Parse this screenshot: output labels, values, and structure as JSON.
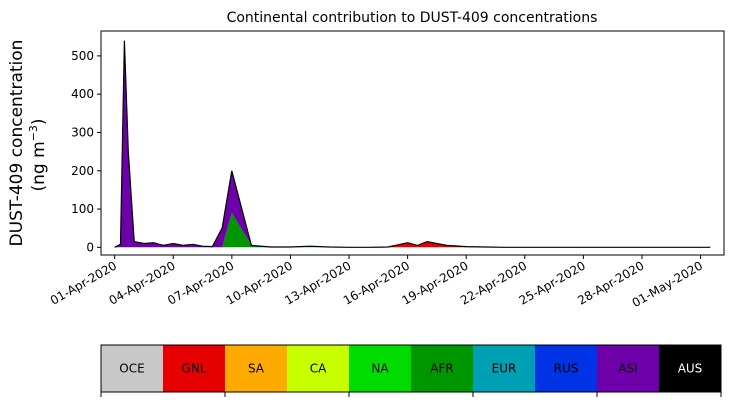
{
  "chart_data": {
    "type": "area",
    "title": "Continental contribution to DUST-409 concentrations",
    "ylabel_line1": "DUST-409 concentration",
    "ylabel_line2": "(ng m",
    "ylabel_unit_exp": "−3",
    "ylabel_close": ")",
    "xlabel": "",
    "x_tick_labels": [
      "01-Apr-2020",
      "04-Apr-2020",
      "07-Apr-2020",
      "10-Apr-2020",
      "13-Apr-2020",
      "16-Apr-2020",
      "19-Apr-2020",
      "22-Apr-2020",
      "25-Apr-2020",
      "28-Apr-2020",
      "01-May-2020"
    ],
    "x_tick_days": [
      0,
      3,
      6,
      9,
      12,
      15,
      18,
      21,
      24,
      27,
      30
    ],
    "xlim_days": [
      -0.7,
      31.2
    ],
    "ylim": [
      -20,
      565
    ],
    "y_ticks": [
      0,
      100,
      200,
      300,
      400,
      500
    ],
    "x_days": [
      0,
      0.3,
      0.5,
      0.7,
      1.0,
      1.5,
      2.0,
      2.5,
      3.0,
      3.5,
      4.0,
      4.5,
      5.0,
      5.5,
      6.0,
      7.0,
      8.0,
      9.0,
      10.0,
      11.0,
      12.0,
      13.0,
      14.0,
      15.0,
      15.5,
      16.0,
      17.0,
      18.0,
      19.0,
      20.0,
      21.0,
      22.0,
      23.0,
      24.0,
      25.0,
      26.0,
      27.0,
      28.0,
      29.0,
      30.0,
      30.5
    ],
    "series": [
      {
        "name": "OCE",
        "color": "#c8c8c8",
        "values": [
          0,
          0,
          0,
          0,
          0,
          0,
          0,
          0,
          0,
          0,
          0,
          0,
          0,
          0,
          0,
          0,
          0,
          0,
          0,
          0,
          0,
          0,
          0,
          0,
          0,
          0,
          0,
          0,
          0,
          0,
          0,
          0,
          0,
          0,
          0,
          0,
          0,
          0,
          0,
          0,
          0
        ]
      },
      {
        "name": "GNL",
        "color": "#e60000",
        "values": [
          0,
          0,
          0,
          0,
          0,
          0,
          0,
          0,
          0,
          0,
          0,
          0,
          0,
          0,
          0,
          0,
          0,
          0,
          0,
          0,
          0,
          0,
          1,
          12,
          5,
          15,
          5,
          2,
          1,
          0,
          0,
          0,
          0,
          0,
          0,
          0,
          0,
          0,
          0,
          0,
          0
        ]
      },
      {
        "name": "SA",
        "color": "#ffaa00",
        "values": [
          0,
          0,
          0,
          0,
          0,
          0,
          0,
          0,
          0,
          0,
          0,
          0,
          0,
          0,
          0,
          0,
          0,
          0,
          0,
          0,
          0,
          0,
          0,
          0,
          0,
          0,
          0,
          0,
          0,
          0,
          0,
          0,
          0,
          0,
          0,
          0,
          0,
          0,
          0,
          0,
          0
        ]
      },
      {
        "name": "CA",
        "color": "#c8ff00",
        "values": [
          0,
          0,
          0,
          0,
          0,
          0,
          0,
          0,
          0,
          0,
          0,
          0,
          0,
          0,
          0,
          0,
          0,
          0,
          0,
          0,
          0,
          0,
          0,
          0,
          0,
          0,
          0,
          0,
          0,
          0,
          0,
          0,
          0,
          0,
          0,
          0,
          0,
          0,
          0,
          0,
          0
        ]
      },
      {
        "name": "NA",
        "color": "#00dc00",
        "values": [
          0,
          0,
          0,
          0,
          0,
          0,
          0,
          0,
          0,
          0,
          0,
          0,
          0,
          0,
          0,
          0,
          0,
          0,
          0,
          0,
          0,
          0,
          0,
          0,
          0,
          0,
          0,
          0,
          0,
          0,
          0,
          0,
          0,
          0,
          0,
          0,
          0,
          0,
          0,
          0,
          0
        ]
      },
      {
        "name": "AFR",
        "color": "#009600",
        "values": [
          0,
          0,
          0,
          0,
          0,
          0,
          0,
          0,
          0,
          0,
          0,
          0,
          0,
          0,
          90,
          5,
          1,
          1,
          3,
          1,
          0,
          0,
          0,
          0,
          0,
          0,
          0,
          0,
          0,
          0,
          0,
          0,
          0,
          0,
          0,
          0,
          0,
          0,
          0,
          0,
          0
        ]
      },
      {
        "name": "EUR",
        "color": "#00a0b4",
        "values": [
          0,
          0,
          0,
          0,
          0,
          0,
          0,
          0,
          0,
          0,
          0,
          0,
          0,
          0,
          0,
          0,
          0,
          0,
          0,
          0,
          0,
          0,
          0,
          0,
          0,
          0,
          0,
          0,
          0,
          0,
          0,
          0,
          0,
          0,
          0,
          0,
          0,
          0,
          0,
          0,
          0
        ]
      },
      {
        "name": "RUS",
        "color": "#0032e6",
        "values": [
          0,
          0,
          0,
          0,
          0,
          0,
          0,
          0,
          0,
          0,
          0,
          0,
          0,
          0,
          0,
          0,
          0,
          0,
          0,
          0,
          0,
          0,
          0,
          0,
          0,
          0,
          0,
          0,
          0,
          0,
          0,
          0,
          0,
          0,
          0,
          0,
          0,
          0,
          0,
          0,
          0
        ]
      },
      {
        "name": "ASI",
        "color": "#6e00aa",
        "values": [
          0,
          8,
          540,
          250,
          15,
          10,
          12,
          5,
          10,
          5,
          8,
          3,
          2,
          50,
          110,
          0,
          0,
          0,
          0,
          0,
          0,
          0,
          0,
          0,
          0,
          0,
          0,
          0,
          0,
          0,
          0,
          0,
          0,
          0,
          0,
          0,
          0,
          0,
          0,
          0,
          0
        ]
      },
      {
        "name": "AUS",
        "color": "#000000",
        "values": [
          0,
          0,
          0,
          0,
          0,
          0,
          0,
          0,
          0,
          0,
          0,
          0,
          0,
          0,
          0,
          0,
          0,
          0,
          0,
          0,
          0,
          0,
          0,
          0,
          0,
          0,
          0,
          0,
          0,
          0,
          0,
          0,
          0,
          0,
          0,
          0,
          0,
          0,
          0,
          0,
          0
        ]
      }
    ],
    "grid": false,
    "legend": {
      "placement": "bottom colorbar",
      "entries": [
        {
          "label": "OCE",
          "color": "#c8c8c8",
          "text_color": "#000000"
        },
        {
          "label": "GNL",
          "color": "#e60000",
          "text_color": "#000000"
        },
        {
          "label": "SA",
          "color": "#ffaa00",
          "text_color": "#000000"
        },
        {
          "label": "CA",
          "color": "#c8ff00",
          "text_color": "#000000"
        },
        {
          "label": "NA",
          "color": "#00dc00",
          "text_color": "#000000"
        },
        {
          "label": "AFR",
          "color": "#009600",
          "text_color": "#000000"
        },
        {
          "label": "EUR",
          "color": "#00a0b4",
          "text_color": "#000000"
        },
        {
          "label": "RUS",
          "color": "#0032e6",
          "text_color": "#000000"
        },
        {
          "label": "ASI",
          "color": "#6e00aa",
          "text_color": "#000000"
        },
        {
          "label": "AUS",
          "color": "#000000",
          "text_color": "#ffffff"
        }
      ]
    }
  }
}
